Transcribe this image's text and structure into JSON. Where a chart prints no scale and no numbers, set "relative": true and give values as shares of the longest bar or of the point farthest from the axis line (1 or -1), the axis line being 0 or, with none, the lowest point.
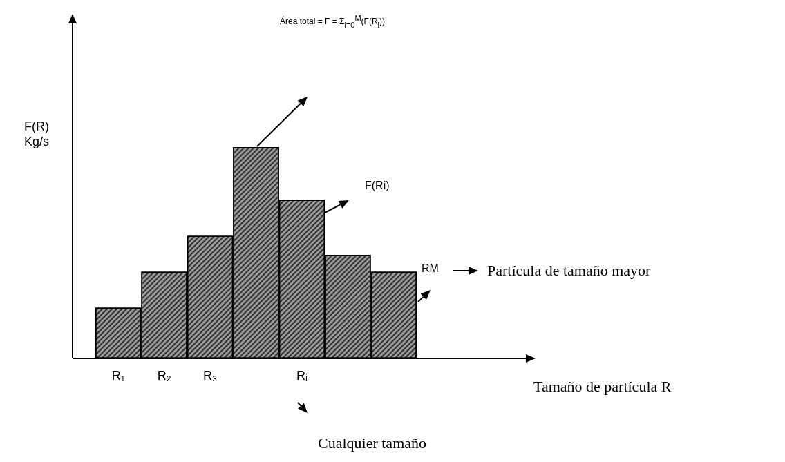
{
  "chart_data": {
    "type": "bar",
    "relative": true,
    "categories": [
      "R₁",
      "R₂",
      "R₃",
      null,
      "Rᵢ",
      null,
      null
    ],
    "values": [
      0.24,
      0.41,
      0.58,
      1,
      0.75,
      0.49,
      0.41
    ],
    "color": "#9a9a9a",
    "ylabel": "F(R)\nKg/s",
    "annotations": [
      "Área total = F = Σ$_{i=0}$$^{M}$(F(R$_{i}$))",
      "F(Ri)",
      "RM",
      "Partícula de tamaño mayor",
      "Cualquier tamaño",
      "Tamaño de partícula R"
    ],
    "grid": false
  }
}
